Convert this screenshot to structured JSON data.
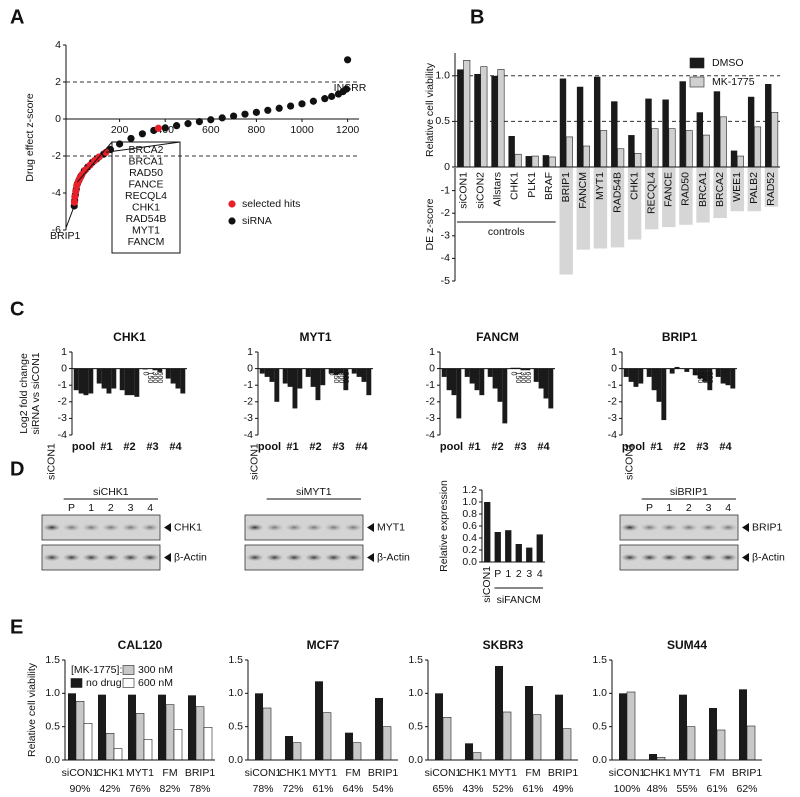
{
  "panels": [
    "A",
    "B",
    "C",
    "D",
    "E"
  ],
  "chart_data": [
    {
      "type": "scatter",
      "ylabel": "Drug effect z-score",
      "xlim": [
        0,
        1250
      ],
      "ylim": [
        -6,
        4
      ],
      "xticks": [
        200,
        400,
        600,
        800,
        1000,
        1200
      ],
      "yticks": [
        -6,
        -4,
        -2,
        0,
        2,
        4
      ],
      "hlines": [
        2,
        -2
      ],
      "series": [
        {
          "name": "siRNA",
          "color": "#111111",
          "x": [
            1,
            3,
            6,
            10,
            15,
            22,
            30,
            45,
            60,
            80,
            100,
            130,
            160,
            200,
            250,
            300,
            350,
            400,
            450,
            500,
            550,
            600,
            650,
            700,
            750,
            800,
            850,
            900,
            950,
            1000,
            1050,
            1100,
            1130,
            1160,
            1180,
            1195,
            1200
          ],
          "values": [
            -4.7,
            -4.4,
            -4.1,
            -3.8,
            -3.5,
            -3.3,
            -3.1,
            -2.8,
            -2.6,
            -2.35,
            -2.15,
            -1.9,
            -1.65,
            -1.35,
            -1.05,
            -0.8,
            -0.62,
            -0.48,
            -0.36,
            -0.25,
            -0.14,
            -0.04,
            0.06,
            0.16,
            0.26,
            0.36,
            0.47,
            0.58,
            0.7,
            0.82,
            0.96,
            1.1,
            1.22,
            1.35,
            1.48,
            1.62,
            3.2
          ]
        },
        {
          "name": "selected hits",
          "color": "#e8202a",
          "x": [
            2,
            4,
            8,
            12,
            18,
            26,
            35,
            50,
            70,
            90,
            110,
            140,
            370
          ],
          "values": [
            -4.5,
            -4.2,
            -3.9,
            -3.6,
            -3.4,
            -3.2,
            -3.0,
            -2.75,
            -2.5,
            -2.25,
            -2.05,
            -1.8,
            -0.5
          ]
        }
      ],
      "annotations": {
        "top": "INSRR",
        "bottom": "BRIP1",
        "hits": [
          "BRCA2",
          "BRCA1",
          "RAD50",
          "FANCE",
          "RECQL4",
          "CHK1",
          "RAD54B",
          "MYT1",
          "FANCM"
        ]
      }
    },
    {
      "type": "bar",
      "ylabel": "Relative cell viability",
      "ylim": [
        0,
        1.25
      ],
      "yticks": [
        0,
        0.5,
        {
          "value": 1,
          "label": "1.0"
        }
      ],
      "hlines": [
        1,
        0.5
      ],
      "group_label": "controls",
      "categories": [
        "siCON1",
        "siCON2",
        "Allstars",
        "CHK1",
        "PLK1",
        "BRAF",
        "BRIP1",
        "FANCM",
        "MYT1",
        "RAD54B",
        "CHK1",
        "RECQL4",
        "FANCE",
        "RAD50",
        "BRCA1",
        "BRCA2",
        "WEE1",
        "PALB2",
        "RAD52"
      ],
      "series": [
        {
          "name": "DMSO",
          "color": "#1a1a1a",
          "values": [
            1.07,
            1.02,
            1.0,
            0.34,
            0.12,
            0.13,
            0.97,
            0.88,
            0.99,
            0.72,
            0.35,
            0.75,
            0.74,
            0.94,
            0.6,
            0.83,
            0.18,
            0.77,
            0.91
          ]
        },
        {
          "name": "MK-1775",
          "color": "#d0d0d0",
          "values": [
            1.17,
            1.1,
            1.07,
            0.14,
            0.12,
            0.11,
            0.33,
            0.23,
            0.4,
            0.2,
            0.15,
            0.42,
            0.42,
            0.4,
            0.35,
            0.55,
            0.12,
            0.44,
            0.6
          ]
        }
      ]
    },
    {
      "type": "bar",
      "ylabel": "DE z-score",
      "ylim": [
        -5,
        0
      ],
      "yticks": [
        -5,
        -4,
        -3,
        -2,
        -1
      ],
      "color": "#d6d6d6",
      "values": [
        null,
        null,
        null,
        null,
        null,
        null,
        -4.7,
        -3.6,
        -3.55,
        -3.5,
        -3.15,
        -2.7,
        -2.6,
        -2.5,
        -2.4,
        -2.2,
        -1.9,
        -1.9,
        -1.7
      ]
    },
    {
      "type": "bar",
      "title": "CHK1",
      "ylabel": [
        "Log2 fold change",
        "siRNA vs siCON1"
      ],
      "ylim": [
        -4,
        1
      ],
      "yticks": [
        -4,
        -3,
        -2,
        -1,
        0,
        1
      ],
      "categories": [
        "pool",
        "#1",
        "#2",
        "#3",
        "#4"
      ],
      "series": [
        {
          "name": "0",
          "color": "#1a1a1a",
          "values": [
            -1.3,
            -0.9,
            -1.3,
            -0.05,
            -0.6
          ]
        },
        {
          "name": "150",
          "color": "#1a1a1a",
          "values": [
            -1.5,
            -1.2,
            -1.6,
            0,
            -0.9
          ]
        },
        {
          "name": "300",
          "color": "#1a1a1a",
          "values": [
            -1.6,
            -1.5,
            -1.6,
            -0.1,
            -1.2
          ]
        },
        {
          "name": "600",
          "color": "#1a1a1a",
          "values": [
            -1.5,
            -1.2,
            -1.7,
            -0.2,
            -1.5
          ]
        }
      ]
    },
    {
      "type": "bar",
      "title": "MYT1",
      "ylim": [
        -4,
        1
      ],
      "yticks": [
        -4,
        -3,
        -2,
        -1,
        0,
        1
      ],
      "categories": [
        "pool",
        "#1",
        "#2",
        "#3",
        "#4"
      ],
      "series": [
        {
          "name": "0",
          "color": "#1a1a1a",
          "values": [
            -0.3,
            -0.9,
            -0.5,
            -0.3,
            -0.3
          ]
        },
        {
          "name": "150",
          "color": "#1a1a1a",
          "values": [
            -0.5,
            -1.1,
            -1.1,
            -0.4,
            -0.5
          ]
        },
        {
          "name": "300",
          "color": "#1a1a1a",
          "values": [
            -0.8,
            -2.4,
            -1.9,
            -0.3,
            -0.8
          ]
        },
        {
          "name": "600",
          "color": "#1a1a1a",
          "values": [
            -2.0,
            -1.2,
            -1.0,
            -1.3,
            -1.6
          ]
        }
      ]
    },
    {
      "type": "bar",
      "title": "FANCM",
      "ylim": [
        -4,
        1
      ],
      "yticks": [
        -4,
        -3,
        -2,
        -1,
        0,
        1
      ],
      "categories": [
        "pool",
        "#1",
        "#2",
        "#3",
        "#4"
      ],
      "series": [
        {
          "name": "0",
          "color": "#1a1a1a",
          "values": [
            -0.5,
            -0.5,
            -0.5,
            0.05,
            -0.8
          ]
        },
        {
          "name": "150",
          "color": "#1a1a1a",
          "values": [
            -1.3,
            -0.9,
            -1.2,
            0.05,
            -1.2
          ]
        },
        {
          "name": "300",
          "color": "#1a1a1a",
          "values": [
            -1.6,
            -1.3,
            -2.0,
            -0.1,
            -1.8
          ]
        },
        {
          "name": "600",
          "color": "#1a1a1a",
          "values": [
            -3.0,
            -1.6,
            -3.3,
            -0.1,
            -2.4
          ]
        }
      ]
    },
    {
      "type": "bar",
      "title": "BRIP1",
      "ylim": [
        -4,
        1
      ],
      "yticks": [
        -4,
        -3,
        -2,
        -1,
        0,
        1
      ],
      "categories": [
        "pool",
        "#1",
        "#2",
        "#3",
        "#4"
      ],
      "series": [
        {
          "name": "0",
          "color": "#1a1a1a",
          "values": [
            -0.5,
            -0.5,
            -0.3,
            -0.4,
            -0.5
          ]
        },
        {
          "name": "150",
          "color": "#1a1a1a",
          "values": [
            -0.8,
            -1.3,
            0.1,
            -0.6,
            -0.9
          ]
        },
        {
          "name": "300",
          "color": "#1a1a1a",
          "values": [
            -1.1,
            -2.0,
            0,
            -0.8,
            -1.0
          ]
        },
        {
          "name": "600",
          "color": "#1a1a1a",
          "values": [
            -0.9,
            -3.1,
            -0.2,
            -1.3,
            -1.2
          ]
        }
      ]
    },
    {
      "type": "bar",
      "ylabel": "Relative expression",
      "ylim": [
        0,
        1.2
      ],
      "yticks": [
        {
          "value": 0,
          "label": "0.0"
        },
        0.2,
        0.4,
        0.6,
        0.8,
        {
          "value": 1,
          "label": "1.0"
        },
        {
          "value": 1.2,
          "label": "1.2"
        }
      ],
      "group_label": "siFANCM",
      "categories": [
        "siCON1",
        "P",
        "1",
        "2",
        "3",
        "4"
      ],
      "values": [
        1.0,
        0.5,
        0.53,
        0.3,
        0.24,
        0.46
      ],
      "color": "#1a1a1a"
    },
    {
      "type": "bar",
      "title": "CAL120",
      "ylabel": "Relative cell viability",
      "legend_title": "[MK-1775]:",
      "ylim": [
        0,
        1.5
      ],
      "yticks": [
        {
          "value": 0,
          "label": "0.0"
        },
        0.5,
        {
          "value": 1,
          "label": "1.0"
        },
        1.5
      ],
      "categories": [
        "siCON1",
        "CHK1",
        "MYT1",
        "FM",
        "BRIP1"
      ],
      "series": [
        {
          "name": "no drug",
          "color": "#1a1a1a",
          "values": [
            1.0,
            0.98,
            0.98,
            0.98,
            0.97
          ]
        },
        {
          "name": "300 nM",
          "color": "#c8c8c8",
          "values": [
            0.88,
            0.4,
            0.7,
            0.83,
            0.8
          ]
        },
        {
          "name": "600 nM",
          "color": "#ffffff",
          "values": [
            0.55,
            0.17,
            0.31,
            0.46,
            0.49
          ]
        }
      ],
      "survival": {
        "values": [
          90,
          42,
          76,
          82,
          78
        ],
        "value_labels": [
          "90%",
          "42%",
          "76%",
          "82%",
          "78%"
        ]
      }
    },
    {
      "type": "bar",
      "title": "MCF7",
      "ylim": [
        0,
        1.5
      ],
      "yticks": [
        {
          "value": 0,
          "label": "0.0"
        },
        0.5,
        {
          "value": 1,
          "label": "1.0"
        },
        1.5
      ],
      "categories": [
        "siCON1",
        "CHK1",
        "MYT1",
        "FM",
        "BRIP1"
      ],
      "series": [
        {
          "color": "#1a1a1a",
          "values": [
            1.0,
            0.36,
            1.18,
            0.41,
            0.93
          ]
        },
        {
          "color": "#c8c8c8",
          "values": [
            0.78,
            0.26,
            0.71,
            0.26,
            0.5
          ]
        }
      ],
      "survival": {
        "values": [
          78,
          72,
          61,
          64,
          54
        ],
        "value_labels": [
          "78%",
          "72%",
          "61%",
          "64%",
          "54%"
        ]
      }
    },
    {
      "type": "bar",
      "title": "SKBR3",
      "ylim": [
        0,
        1.5
      ],
      "yticks": [
        {
          "value": 0,
          "label": "0.0"
        },
        0.5,
        {
          "value": 1,
          "label": "1.0"
        },
        1.5
      ],
      "categories": [
        "siCON1",
        "CHK1",
        "MYT1",
        "FM",
        "BRIP1"
      ],
      "series": [
        {
          "color": "#1a1a1a",
          "values": [
            1.0,
            0.25,
            1.41,
            1.11,
            0.98
          ]
        },
        {
          "color": "#c8c8c8",
          "values": [
            0.64,
            0.11,
            0.72,
            0.68,
            0.47
          ]
        }
      ],
      "survival": {
        "values": [
          65,
          43,
          52,
          61,
          49
        ],
        "value_labels": [
          "65%",
          "43%",
          "52%",
          "61%",
          "49%"
        ]
      }
    },
    {
      "type": "bar",
      "title": "SUM44",
      "ylim": [
        0,
        1.5
      ],
      "yticks": [
        {
          "value": 0,
          "label": "0.0"
        },
        0.5,
        {
          "value": 1,
          "label": "1.0"
        },
        1.5
      ],
      "categories": [
        "siCON1",
        "CHK1",
        "MYT1",
        "FM",
        "BRIP1"
      ],
      "series": [
        {
          "color": "#1a1a1a",
          "values": [
            1.0,
            0.09,
            0.98,
            0.78,
            1.06
          ]
        },
        {
          "color": "#c8c8c8",
          "values": [
            1.02,
            0.04,
            0.5,
            0.45,
            0.51
          ]
        }
      ],
      "survival": {
        "values": [
          100,
          48,
          55,
          61,
          62
        ],
        "value_labels": [
          "100%",
          "48%",
          "55%",
          "61%",
          "62%"
        ]
      }
    }
  ],
  "blots": [
    {
      "control": "siCON1",
      "group": "siCHK1",
      "lanes": [
        "P",
        "1",
        "2",
        "3",
        "4"
      ],
      "proteins": [
        "CHK1",
        "β-Actin"
      ]
    },
    {
      "control": "siCON1",
      "group": "siMYT1",
      "proteins": [
        "MYT1",
        "β-Actin"
      ]
    },
    {
      "control": "siCON1",
      "group": "siBRIP1",
      "lanes": [
        "P",
        "1",
        "2",
        "3",
        "4"
      ],
      "proteins": [
        "BRIP1",
        "β-Actin"
      ]
    }
  ]
}
